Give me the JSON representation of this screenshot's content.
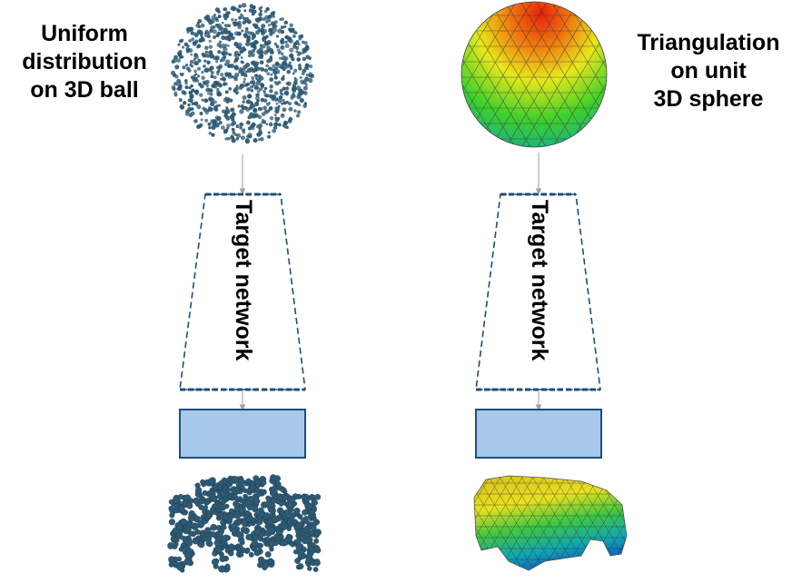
{
  "left_column": {
    "caption_lines": [
      "Uniform",
      "distribution",
      "on 3D ball"
    ],
    "network_label": "Target network",
    "input_icon": "point-cloud-ball-icon",
    "output_icon": "point-cloud-car-icon"
  },
  "right_column": {
    "caption_lines": [
      "Triangulation",
      "on unit",
      "3D sphere"
    ],
    "network_label": "Target network",
    "input_icon": "triangulated-sphere-icon",
    "output_icon": "mesh-car-icon"
  },
  "colors": {
    "point": "#2e5a73",
    "dash": "#1f4e79",
    "box_fill": "#a6c8ea",
    "box_stroke": "#1f4e79",
    "arrow": "#9e9e9e"
  }
}
